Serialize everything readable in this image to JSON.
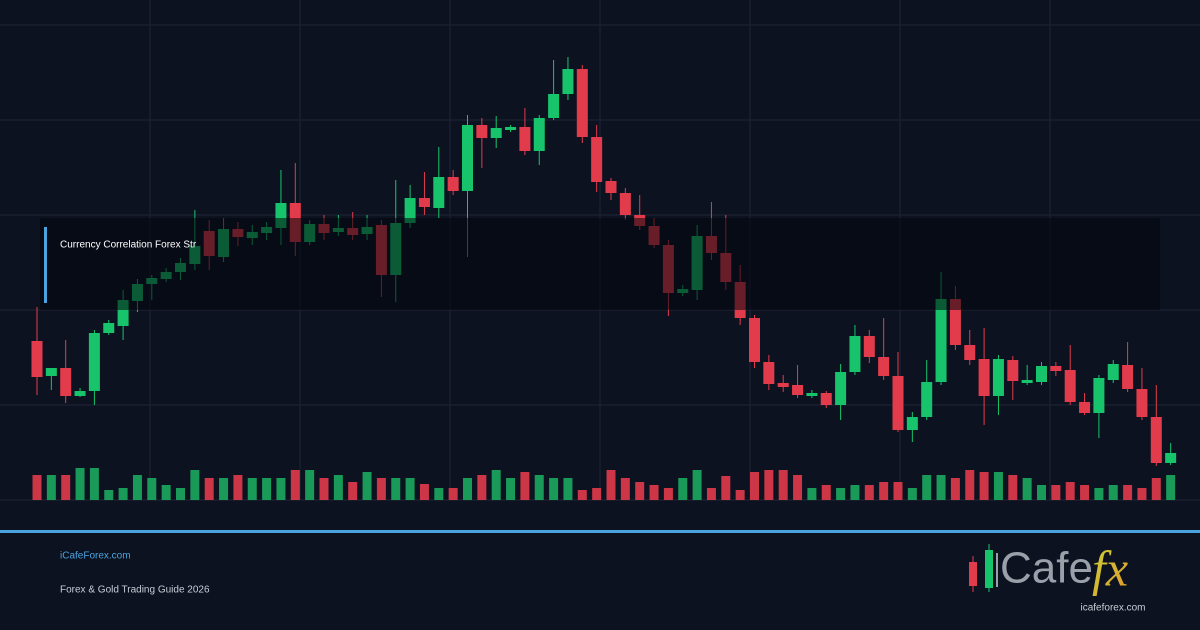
{
  "chart_data": {
    "type": "candlestick",
    "open": [
      159,
      124,
      132,
      104,
      109,
      167,
      174,
      199,
      216,
      221,
      228,
      236,
      269,
      243,
      271,
      262,
      267,
      272,
      297,
      258,
      276,
      268,
      272,
      266,
      275,
      225,
      277,
      302,
      292,
      323,
      309,
      375,
      362,
      370,
      373,
      349,
      382,
      406,
      431,
      363,
      319,
      307,
      285,
      274,
      255,
      207,
      210,
      264,
      247,
      218,
      182,
      138,
      117,
      115,
      104,
      107,
      95,
      128,
      164,
      143,
      124,
      70,
      83,
      118,
      201,
      155,
      141,
      104,
      140,
      117,
      118,
      134,
      130,
      98,
      87,
      120,
      135,
      111,
      83,
      37
    ],
    "high": [
      193,
      132,
      160,
      112,
      170,
      180,
      210,
      221,
      225,
      232,
      242,
      290,
      280,
      282,
      278,
      275,
      278,
      330,
      337,
      280,
      285,
      285,
      288,
      285,
      280,
      320,
      315,
      328,
      353,
      330,
      385,
      382,
      384,
      375,
      392,
      385,
      440,
      443,
      435,
      375,
      322,
      312,
      305,
      282,
      260,
      215,
      275,
      298,
      285,
      235,
      185,
      145,
      125,
      135,
      110,
      109,
      136,
      175,
      170,
      182,
      148,
      88,
      140,
      228,
      214,
      170,
      172,
      145,
      144,
      135,
      138,
      138,
      155,
      107,
      125,
      140,
      158,
      132,
      115,
      57
    ],
    "low": [
      105,
      110,
      97,
      103,
      95,
      165,
      160,
      188,
      200,
      218,
      220,
      230,
      230,
      238,
      254,
      255,
      260,
      255,
      244,
      255,
      260,
      264,
      260,
      260,
      203,
      198,
      272,
      285,
      282,
      305,
      243,
      332,
      352,
      368,
      345,
      335,
      380,
      400,
      357,
      308,
      300,
      280,
      270,
      252,
      184,
      204,
      200,
      240,
      210,
      175,
      132,
      110,
      108,
      102,
      102,
      92,
      80,
      125,
      137,
      120,
      68,
      58,
      80,
      115,
      150,
      135,
      75,
      85,
      100,
      115,
      115,
      124,
      95,
      85,
      62,
      117,
      108,
      80,
      34,
      35
    ],
    "close": [
      123,
      132,
      104,
      109,
      167,
      177,
      200,
      216,
      222,
      228,
      237,
      254,
      244,
      271,
      263,
      268,
      273,
      297,
      258,
      276,
      267,
      272,
      265,
      273,
      225,
      277,
      302,
      293,
      323,
      309,
      375,
      362,
      372,
      373,
      349,
      382,
      406,
      431,
      363,
      318,
      307,
      285,
      274,
      255,
      207,
      211,
      264,
      247,
      218,
      182,
      138,
      116,
      113,
      105,
      107,
      95,
      128,
      164,
      143,
      124,
      70,
      83,
      118,
      201,
      155,
      140,
      104,
      141,
      119,
      120,
      134,
      129,
      98,
      87,
      122,
      136,
      111,
      83,
      37,
      47
    ],
    "volume": [
      25,
      25,
      25,
      32,
      32,
      10,
      12,
      25,
      22,
      15,
      12,
      30,
      22,
      22,
      25,
      22,
      22,
      22,
      30,
      30,
      22,
      25,
      18,
      28,
      22,
      22,
      22,
      16,
      12,
      12,
      22,
      25,
      30,
      22,
      28,
      25,
      22,
      22,
      10,
      12,
      30,
      22,
      18,
      15,
      12,
      22,
      30,
      12,
      24,
      10,
      28,
      30,
      30,
      25,
      12,
      15,
      12,
      15,
      15,
      18,
      18,
      12,
      25,
      25,
      22,
      30,
      28,
      28,
      25,
      22,
      15,
      15,
      18,
      15,
      12,
      15,
      15,
      12,
      22,
      25
    ],
    "up_color": "#17c46c",
    "down_color": "#e23c4c",
    "volume_up_color": "#199a58",
    "volume_down_color": "#cc3646",
    "ylim": [
      0,
      475
    ],
    "yticks": [
      0,
      95,
      190,
      285,
      380,
      475
    ],
    "volume_lim": [
      0,
      100
    ],
    "grid": true
  },
  "overlay_text": "Currency Correlation Forex Str",
  "site": "iCafeForex.com",
  "subtitle": "Forex & Gold Trading Guide 2026",
  "logo": {
    "text": "Cafe",
    "accent": "fx",
    "url": "icafeforex.com"
  }
}
